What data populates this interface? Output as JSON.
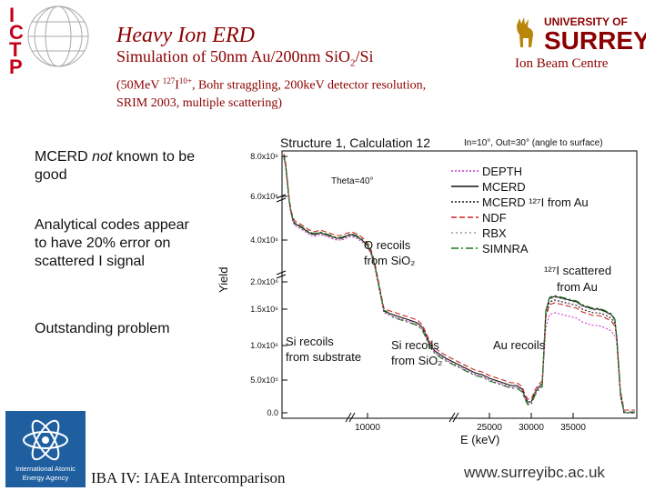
{
  "header": {
    "title": "Heavy Ion ERD",
    "subtitle_main": "Simulation of 50nm Au/200nm Si",
    "subtitle_o": "O",
    "subtitle_sub": "2",
    "subtitle_end": "/Si",
    "conditions_line1_pre": "(50MeV ",
    "conditions_line1_sup": "127",
    "conditions_line1_ion": "I",
    "conditions_line1_sup2": "10+",
    "conditions_line1_post": ", Bohr straggling, 200keV detector resolution,",
    "conditions_line2": "SRIM 2003, multiple scattering)"
  },
  "branding": {
    "ictp_letters": [
      "I",
      "C",
      "T",
      "P"
    ],
    "university_line1": "UNIVERSITY OF",
    "university_line2": "SURREY",
    "centre": "Ion Beam Centre",
    "iaea_text_lines": [
      "International Atomic",
      "Energy Agency"
    ],
    "colors": {
      "maroon": "#8b0000",
      "ictp_red": "#c4001a",
      "iaea_blue": "#1f5fa0"
    }
  },
  "bullets": {
    "b1_pre": "MCERD ",
    "b1_em": "not",
    "b1_post": " known to be good",
    "b2": "Analytical codes appear to have 20% error on scattered I signal",
    "b3": "Outstanding problem"
  },
  "footer": {
    "left": "IBA IV:  IAEA Intercomparison",
    "right": "www.surreyibc.ac.uk"
  },
  "chart_data": {
    "type": "line",
    "title": "Structure 1, Calculation 12",
    "angle_note": "In=10°, Out=30° (angle to surface)",
    "theta_note": "Theta=40°",
    "xlabel": "E (keV)",
    "ylabel": "Yield",
    "x_ticks": [
      "10000",
      "25000",
      "30000",
      "35000"
    ],
    "y_ticks": [
      "0.0",
      "5.0x10⁵",
      "1.0x10⁶",
      "1.5x10⁶",
      "2.0x10⁶",
      "4.0x10⁶",
      "6.0x10⁶",
      "8.0x10⁶"
    ],
    "annotations": {
      "o_recoils": [
        "O recoils",
        "from SiO₂"
      ],
      "i_scattered": [
        "¹²⁷I scattered",
        "from Au"
      ],
      "si_sub": [
        "Si recoils",
        "from substrate"
      ],
      "si_sio2": [
        "Si recoils",
        "from SiO₂"
      ],
      "au_recoils": [
        "Au recoils"
      ]
    },
    "legend": [
      {
        "name": "DEPTH",
        "color": "#cc33cc",
        "dash": "2,2"
      },
      {
        "name": "MCERD",
        "color": "#111111",
        "dash": ""
      },
      {
        "name": "MCERD ¹²⁷I from Au",
        "color": "#111111",
        "dash": "2,2"
      },
      {
        "name": "NDF",
        "color": "#cc2222",
        "dash": "6,3"
      },
      {
        "name": "RBX",
        "color": "#999999",
        "dash": "2,3"
      },
      {
        "name": "SIMNRA",
        "color": "#1a7a1a",
        "dash": "8,3,2,3"
      }
    ],
    "legend_position": "top-right",
    "grid": false
  }
}
